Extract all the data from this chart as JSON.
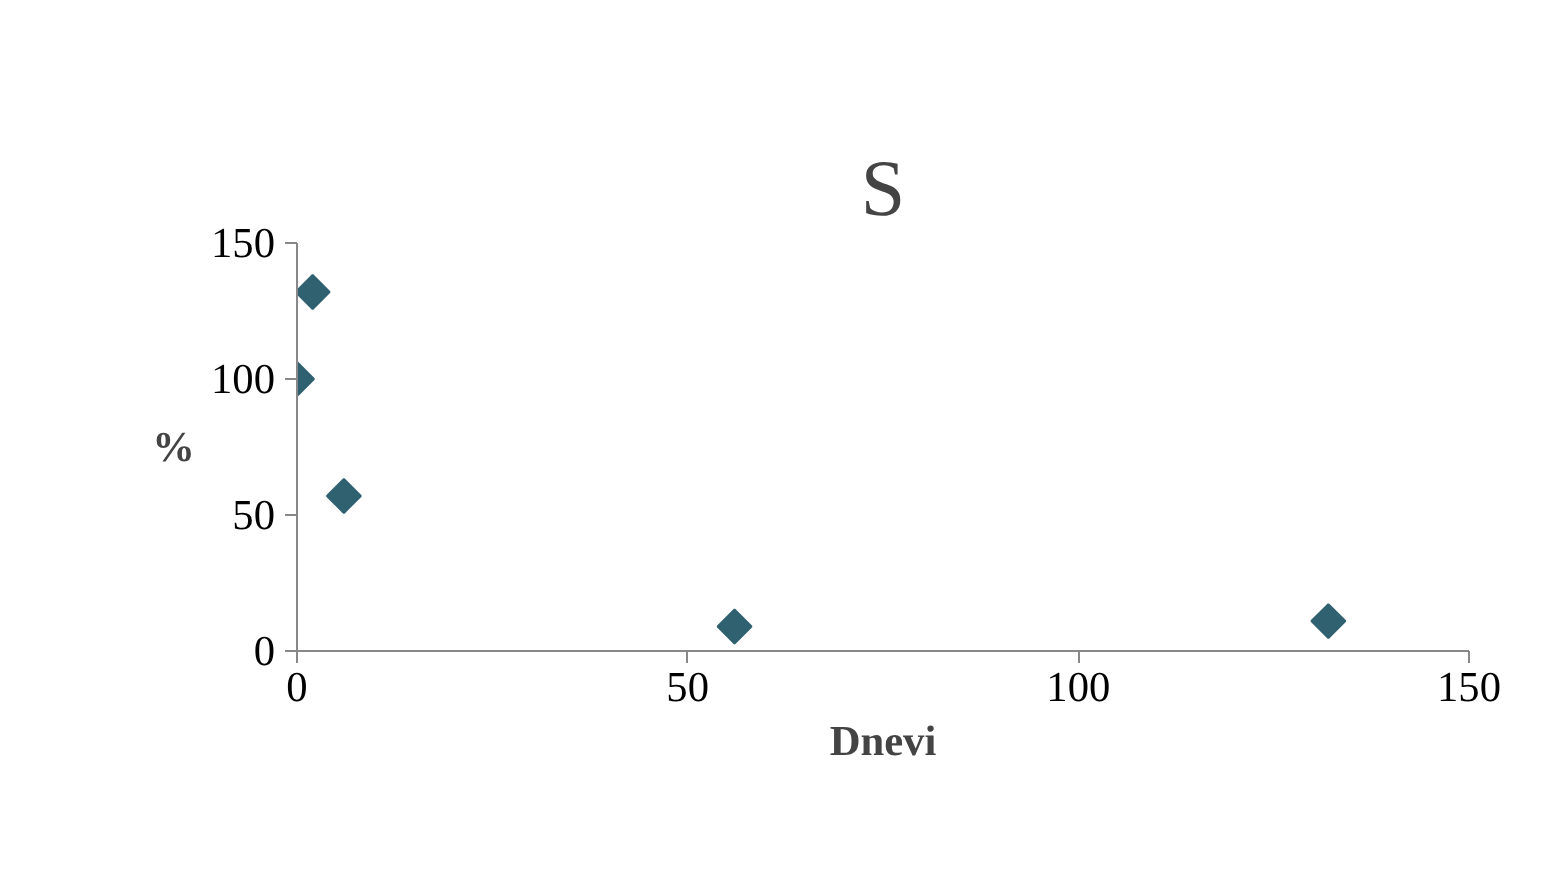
{
  "chart_data": {
    "type": "scatter",
    "title": "S",
    "xlabel": "Dnevi",
    "ylabel": "%",
    "x": [
      0,
      2,
      6,
      56,
      132
    ],
    "series": [
      {
        "color": "#2f6170",
        "values": [
          100,
          132,
          57,
          9,
          11
        ]
      }
    ],
    "xlim": [
      0,
      150
    ],
    "xticks": [
      0,
      50,
      100,
      150
    ],
    "ylim": [
      0,
      150
    ],
    "yticks": [
      0,
      50,
      100,
      150
    ],
    "grid": false,
    "marker": "diamond"
  }
}
